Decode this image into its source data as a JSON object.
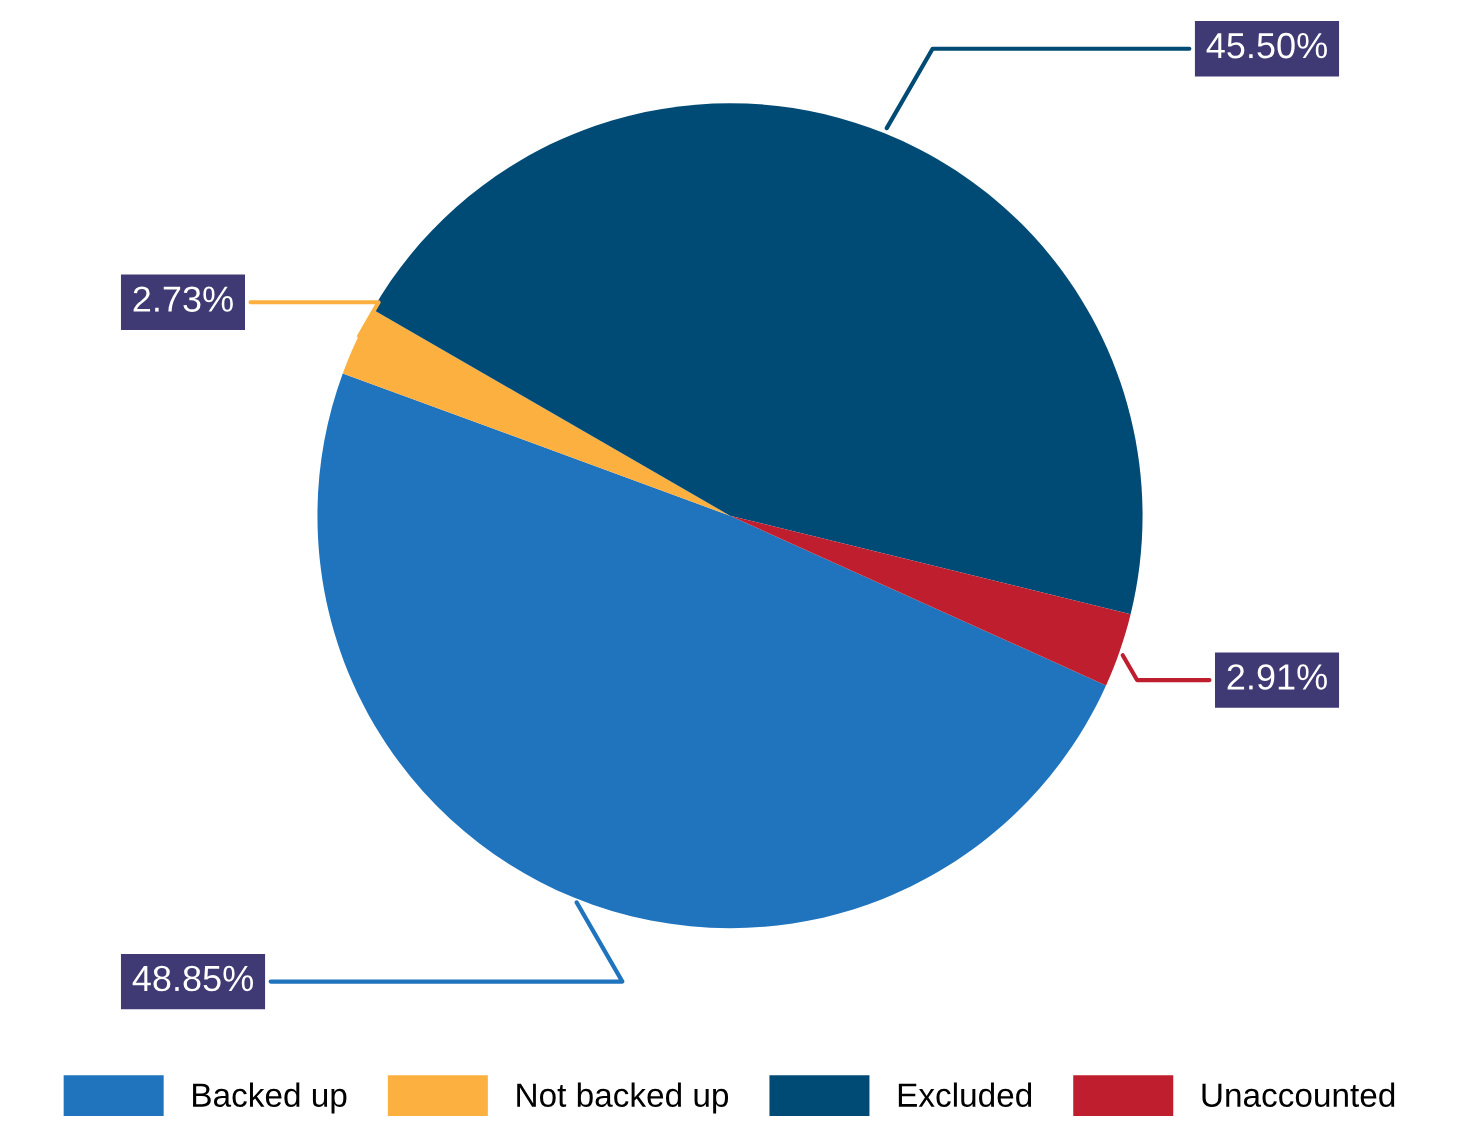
{
  "chart_data": {
    "type": "pie",
    "categories": [
      "Backed up",
      "Not backed up",
      "Excluded",
      "Unaccounted"
    ],
    "values": [
      48.85,
      2.73,
      45.5,
      2.91
    ],
    "colors": [
      "#1f74bd",
      "#fbb040",
      "#004b75",
      "#be1e2d"
    ],
    "value_labels": [
      "48.85%",
      "2.73%",
      "45.50%",
      "2.91%"
    ],
    "legend": "bottom"
  }
}
